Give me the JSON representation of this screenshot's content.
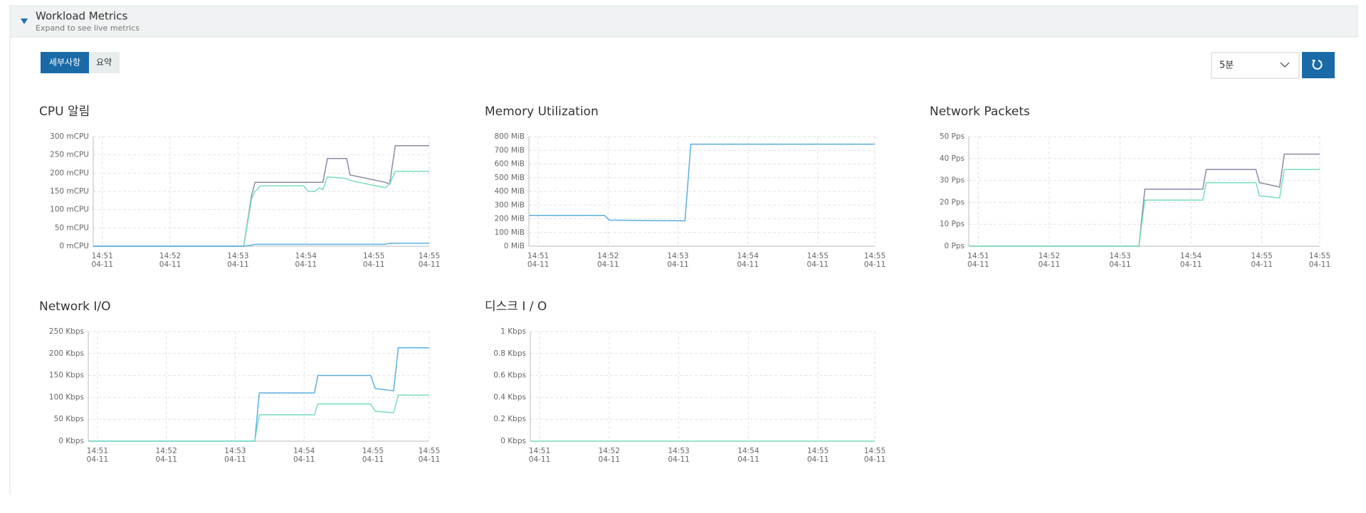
{
  "header": {
    "title": "Workload Metrics",
    "subtitle": "Expand to see live metrics"
  },
  "toolbar": {
    "tabs": [
      "세부사항",
      "요약"
    ],
    "range": "5분"
  },
  "chart_data": [
    {
      "type": "line",
      "title": "CPU 알림",
      "x": [
        "14:50:52",
        "14:53:05",
        "14:53:12",
        "14:53:15",
        "14:53:20",
        "14:53:58",
        "14:54:02",
        "14:54:08",
        "14:54:12",
        "14:54:15",
        "14:54:19",
        "14:54:36",
        "14:54:39",
        "14:55:10",
        "14:55:14",
        "14:55:19",
        "14:55:49"
      ],
      "series": [
        {
          "color": "#8a8aa6",
          "values": [
            0,
            0,
            140,
            175,
            175,
            175,
            175,
            175,
            175,
            175,
            240,
            240,
            195,
            175,
            170,
            275,
            275
          ]
        },
        {
          "color": "#79dcc0",
          "values": [
            0,
            0,
            130,
            150,
            165,
            165,
            150,
            150,
            160,
            155,
            190,
            185,
            180,
            160,
            170,
            205,
            205
          ]
        },
        {
          "color": "#5aaee0",
          "values": [
            0,
            0,
            3,
            5,
            5,
            5,
            5,
            5,
            5,
            5,
            5,
            5,
            5,
            5,
            8,
            8,
            8
          ]
        }
      ],
      "xlim": [
        "14:50:52",
        "14:55:49"
      ],
      "xticks": [
        {
          "value": "14:51:00",
          "label": "14:51",
          "date": "04-11"
        },
        {
          "value": "14:52:00",
          "label": "14:52",
          "date": "04-11"
        },
        {
          "value": "14:53:00",
          "label": "14:53",
          "date": "04-11"
        },
        {
          "value": "14:54:00",
          "label": "14:54",
          "date": "04-11"
        },
        {
          "value": "14:55:00",
          "label": "14:55",
          "date": "04-11"
        },
        {
          "value": "14:55:49",
          "label": "14:55",
          "date": "04-11"
        }
      ],
      "ylim": [
        0,
        300
      ],
      "yticks": [
        {
          "value": 0,
          "label": "0 mCPU"
        },
        {
          "value": 50,
          "label": "50 mCPU"
        },
        {
          "value": 100,
          "label": "100 mCPU"
        },
        {
          "value": 150,
          "label": "150 mCPU"
        },
        {
          "value": 200,
          "label": "200 mCPU"
        },
        {
          "value": 250,
          "label": "250 mCPU"
        },
        {
          "value": 300,
          "label": "300 mCPU"
        }
      ],
      "grid": true
    },
    {
      "type": "line",
      "title": "Memory Utilization",
      "x": [
        "14:50:52",
        "14:51:57",
        "14:52:01",
        "14:53:06",
        "14:53:11",
        "14:55:49"
      ],
      "series": [
        {
          "color": "#5aaee0",
          "values": [
            225,
            225,
            190,
            185,
            745,
            745
          ]
        }
      ],
      "xlim": [
        "14:50:52",
        "14:55:49"
      ],
      "xticks": [
        {
          "value": "14:51:00",
          "label": "14:51",
          "date": "04-11"
        },
        {
          "value": "14:52:00",
          "label": "14:52",
          "date": "04-11"
        },
        {
          "value": "14:53:00",
          "label": "14:53",
          "date": "04-11"
        },
        {
          "value": "14:54:00",
          "label": "14:54",
          "date": "04-11"
        },
        {
          "value": "14:55:00",
          "label": "14:55",
          "date": "04-11"
        },
        {
          "value": "14:55:49",
          "label": "14:55",
          "date": "04-11"
        }
      ],
      "ylim": [
        0,
        800
      ],
      "yticks": [
        {
          "value": 0,
          "label": "0 MiB"
        },
        {
          "value": 100,
          "label": "100 MiB"
        },
        {
          "value": 200,
          "label": "200 MiB"
        },
        {
          "value": 300,
          "label": "300 MiB"
        },
        {
          "value": 400,
          "label": "400 MiB"
        },
        {
          "value": 500,
          "label": "500 MiB"
        },
        {
          "value": 600,
          "label": "600 MiB"
        },
        {
          "value": 700,
          "label": "700 MiB"
        },
        {
          "value": 800,
          "label": "800 MiB"
        }
      ],
      "grid": true
    },
    {
      "type": "line",
      "title": "Network Packets",
      "x": [
        "14:50:52",
        "14:53:16",
        "14:53:21",
        "14:54:10",
        "14:54:13",
        "14:54:55",
        "14:54:58",
        "14:55:15",
        "14:55:19",
        "14:55:49"
      ],
      "series": [
        {
          "color": "#8a8aa6",
          "values": [
            0,
            0,
            26,
            26,
            35,
            35,
            29,
            27,
            42,
            42
          ]
        },
        {
          "color": "#79dcc0",
          "values": [
            0,
            0,
            21,
            21,
            29,
            29,
            23,
            22,
            35,
            35
          ]
        }
      ],
      "xlim": [
        "14:50:52",
        "14:55:49"
      ],
      "xticks": [
        {
          "value": "14:51:00",
          "label": "14:51",
          "date": "04-11"
        },
        {
          "value": "14:52:00",
          "label": "14:52",
          "date": "04-11"
        },
        {
          "value": "14:53:00",
          "label": "14:53",
          "date": "04-11"
        },
        {
          "value": "14:54:00",
          "label": "14:54",
          "date": "04-11"
        },
        {
          "value": "14:55:00",
          "label": "14:55",
          "date": "04-11"
        },
        {
          "value": "14:55:49",
          "label": "14:55",
          "date": "04-11"
        }
      ],
      "ylim": [
        0,
        50
      ],
      "yticks": [
        {
          "value": 0,
          "label": "0 Pps"
        },
        {
          "value": 10,
          "label": "10 Pps"
        },
        {
          "value": 20,
          "label": "20 Pps"
        },
        {
          "value": 30,
          "label": "30 Pps"
        },
        {
          "value": 40,
          "label": "40 Pps"
        },
        {
          "value": 50,
          "label": "50 Pps"
        }
      ],
      "grid": true
    },
    {
      "type": "line",
      "title": "Network I/O",
      "x": [
        "14:50:52",
        "14:53:17",
        "14:53:21",
        "14:54:09",
        "14:54:12",
        "14:54:58",
        "14:55:02",
        "14:55:18",
        "14:55:22",
        "14:55:49"
      ],
      "series": [
        {
          "color": "#5aaee0",
          "values": [
            0,
            0,
            110,
            110,
            150,
            150,
            120,
            115,
            213,
            213
          ]
        },
        {
          "color": "#79dcc0",
          "values": [
            0,
            0,
            60,
            60,
            85,
            85,
            68,
            65,
            105,
            105
          ]
        }
      ],
      "xlim": [
        "14:50:52",
        "14:55:49"
      ],
      "xticks": [
        {
          "value": "14:51:00",
          "label": "14:51",
          "date": "04-11"
        },
        {
          "value": "14:52:00",
          "label": "14:52",
          "date": "04-11"
        },
        {
          "value": "14:53:00",
          "label": "14:53",
          "date": "04-11"
        },
        {
          "value": "14:54:00",
          "label": "14:54",
          "date": "04-11"
        },
        {
          "value": "14:55:00",
          "label": "14:55",
          "date": "04-11"
        },
        {
          "value": "14:55:49",
          "label": "14:55",
          "date": "04-11"
        }
      ],
      "ylim": [
        0,
        250
      ],
      "yticks": [
        {
          "value": 0,
          "label": "0 Kbps"
        },
        {
          "value": 50,
          "label": "50 Kbps"
        },
        {
          "value": 100,
          "label": "100 Kbps"
        },
        {
          "value": 150,
          "label": "150 Kbps"
        },
        {
          "value": 200,
          "label": "200 Kbps"
        },
        {
          "value": 250,
          "label": "250 Kbps"
        }
      ],
      "grid": true
    },
    {
      "type": "line",
      "title": "디스크 I / O",
      "x": [
        "14:50:52",
        "14:55:49"
      ],
      "series": [
        {
          "color": "#79dcc0",
          "values": [
            0,
            0
          ]
        }
      ],
      "xlim": [
        "14:50:52",
        "14:55:49"
      ],
      "xticks": [
        {
          "value": "14:51:00",
          "label": "14:51",
          "date": "04-11"
        },
        {
          "value": "14:52:00",
          "label": "14:52",
          "date": "04-11"
        },
        {
          "value": "14:53:00",
          "label": "14:53",
          "date": "04-11"
        },
        {
          "value": "14:54:00",
          "label": "14:54",
          "date": "04-11"
        },
        {
          "value": "14:55:00",
          "label": "14:55",
          "date": "04-11"
        },
        {
          "value": "14:55:49",
          "label": "14:55",
          "date": "04-11"
        }
      ],
      "ylim": [
        0,
        1
      ],
      "yticks": [
        {
          "value": 0,
          "label": "0 Kbps"
        },
        {
          "value": 0.2,
          "label": "0.2 Kbps"
        },
        {
          "value": 0.4,
          "label": "0.4 Kbps"
        },
        {
          "value": 0.6,
          "label": "0.6 Kbps"
        },
        {
          "value": 0.8,
          "label": "0.8 Kbps"
        },
        {
          "value": 1,
          "label": "1 Kbps"
        }
      ],
      "grid": true
    }
  ]
}
